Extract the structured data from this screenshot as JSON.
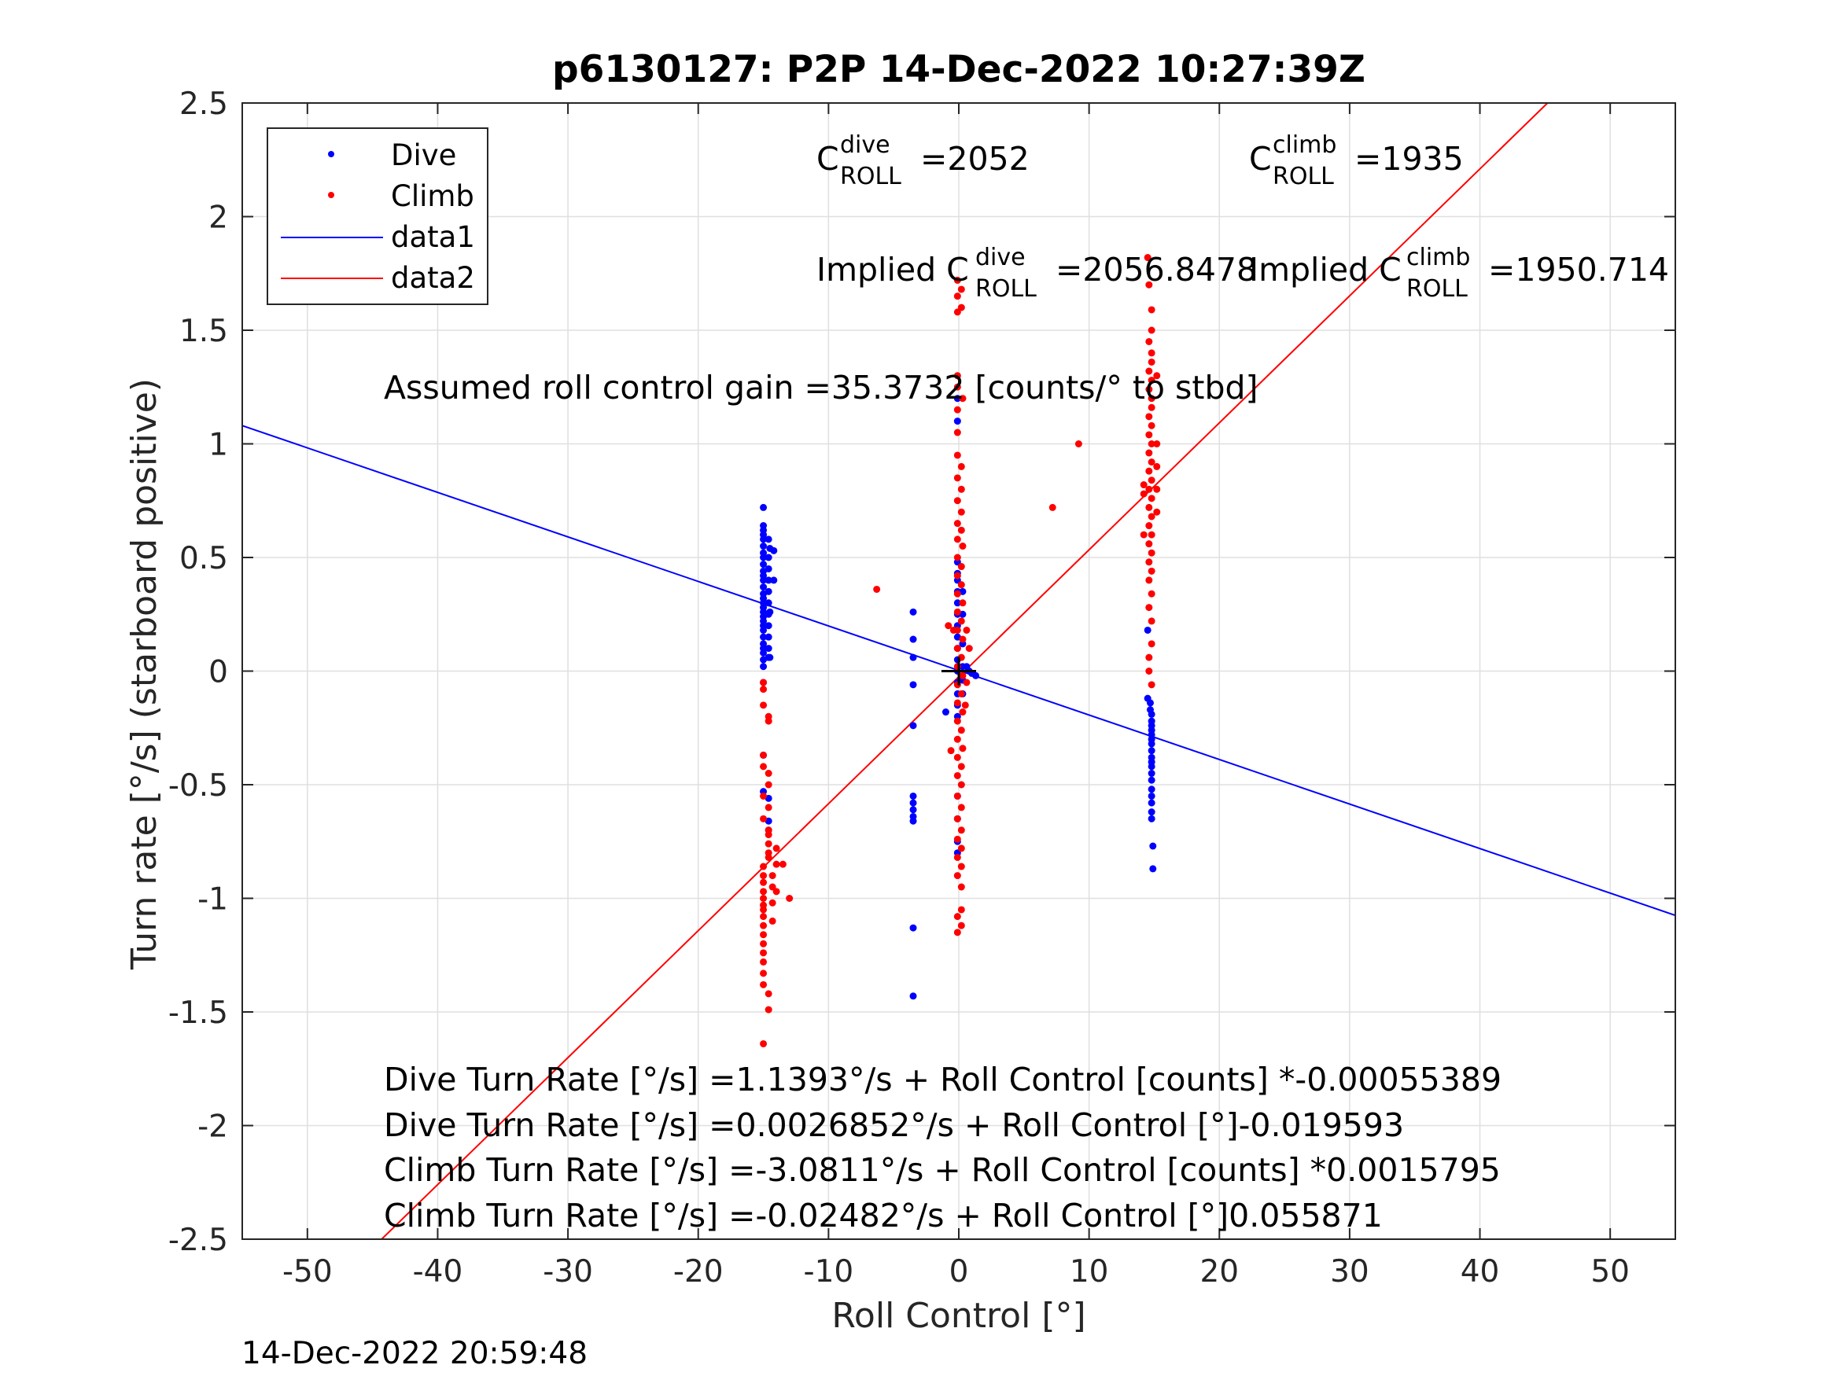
{
  "chart_data": {
    "type": "scatter",
    "title": "p6130127: P2P 14-Dec-2022 10:27:39Z",
    "xlabel": "Roll Control [°]",
    "ylabel": "Turn rate [°/s] (starboard positive)",
    "xlim": [
      -55,
      55
    ],
    "ylim": [
      -2.5,
      2.5
    ],
    "xticks": [
      -50,
      -40,
      -30,
      -20,
      -10,
      0,
      10,
      20,
      30,
      40,
      50
    ],
    "xtick_labels": [
      "-50",
      "-40",
      "-30",
      "-20",
      "-10",
      "0",
      "10",
      "20",
      "30",
      "40",
      "50"
    ],
    "yticks": [
      -2.5,
      -2,
      -1.5,
      -1,
      -0.5,
      0,
      0.5,
      1,
      1.5,
      2,
      2.5
    ],
    "ytick_labels": [
      "-2.5",
      "-2",
      "-1.5",
      "-1",
      "-0.5",
      "0",
      "0.5",
      "1",
      "1.5",
      "2",
      "2.5"
    ],
    "grid": true,
    "legend_position": "top-left",
    "series": [
      {
        "name": "Dive",
        "kind": "points",
        "color": "#0000ff",
        "points": [
          [
            -15.0,
            0.72
          ],
          [
            -15.0,
            0.64
          ],
          [
            -15.0,
            0.62
          ],
          [
            -15.0,
            0.6
          ],
          [
            -15.0,
            0.58
          ],
          [
            -15.0,
            0.55
          ],
          [
            -15.0,
            0.52
          ],
          [
            -15.0,
            0.5
          ],
          [
            -15.0,
            0.47
          ],
          [
            -15.0,
            0.44
          ],
          [
            -15.0,
            0.42
          ],
          [
            -15.0,
            0.4
          ],
          [
            -15.0,
            0.37
          ],
          [
            -15.0,
            0.34
          ],
          [
            -15.0,
            0.32
          ],
          [
            -15.0,
            0.3
          ],
          [
            -15.0,
            0.28
          ],
          [
            -15.0,
            0.26
          ],
          [
            -15.0,
            0.24
          ],
          [
            -15.0,
            0.22
          ],
          [
            -15.0,
            0.2
          ],
          [
            -15.0,
            0.18
          ],
          [
            -15.0,
            0.15
          ],
          [
            -15.0,
            0.12
          ],
          [
            -15.0,
            0.1
          ],
          [
            -15.0,
            0.08
          ],
          [
            -15.0,
            0.05
          ],
          [
            -15.0,
            0.02
          ],
          [
            -15.0,
            -0.05
          ],
          [
            -15.0,
            -0.37
          ],
          [
            -15.0,
            -0.53
          ],
          [
            -14.6,
            0.58
          ],
          [
            -14.6,
            0.5
          ],
          [
            -14.6,
            0.45
          ],
          [
            -14.6,
            0.4
          ],
          [
            -14.6,
            0.35
          ],
          [
            -14.6,
            0.3
          ],
          [
            -14.6,
            0.25
          ],
          [
            -14.6,
            0.2
          ],
          [
            -14.6,
            0.15
          ],
          [
            -14.6,
            0.1
          ],
          [
            -14.6,
            0.06
          ],
          [
            -14.5,
            0.54
          ],
          [
            -14.5,
            0.26
          ],
          [
            -14.5,
            0.06
          ],
          [
            -14.2,
            0.53
          ],
          [
            -14.2,
            0.4
          ],
          [
            -14.6,
            -0.56
          ],
          [
            -14.6,
            -0.66
          ],
          [
            -14.6,
            -0.7
          ],
          [
            -3.5,
            0.26
          ],
          [
            -3.5,
            0.14
          ],
          [
            -3.5,
            0.06
          ],
          [
            -3.5,
            -0.06
          ],
          [
            -3.5,
            -0.24
          ],
          [
            -3.5,
            -0.55
          ],
          [
            -3.5,
            -0.58
          ],
          [
            -3.5,
            -0.61
          ],
          [
            -3.5,
            -0.64
          ],
          [
            -3.5,
            -0.66
          ],
          [
            -3.5,
            -1.13
          ],
          [
            -3.5,
            -1.43
          ],
          [
            -1.0,
            -0.18
          ],
          [
            -0.1,
            1.2
          ],
          [
            -0.1,
            1.1
          ],
          [
            -0.1,
            0.48
          ],
          [
            -0.1,
            0.43
          ],
          [
            -0.1,
            0.4
          ],
          [
            -0.1,
            0.35
          ],
          [
            -0.1,
            0.3
          ],
          [
            -0.1,
            0.25
          ],
          [
            -0.1,
            0.2
          ],
          [
            -0.1,
            0.15
          ],
          [
            -0.1,
            0.1
          ],
          [
            -0.1,
            0.05
          ],
          [
            -0.1,
            0.0
          ],
          [
            -0.1,
            -0.05
          ],
          [
            -0.1,
            -0.1
          ],
          [
            -0.1,
            -0.15
          ],
          [
            -0.1,
            -0.2
          ],
          [
            -0.1,
            -0.55
          ],
          [
            -0.1,
            -0.65
          ],
          [
            -0.1,
            -0.75
          ],
          [
            -0.1,
            -0.8
          ],
          [
            0.3,
            0.35
          ],
          [
            0.3,
            0.25
          ],
          [
            0.3,
            0.12
          ],
          [
            0.3,
            0.02
          ],
          [
            0.3,
            -0.04
          ],
          [
            0.3,
            -0.1
          ],
          [
            0.6,
            0.02
          ],
          [
            0.8,
            0.0
          ],
          [
            1.0,
            -0.01
          ],
          [
            1.3,
            -0.02
          ],
          [
            14.5,
            0.18
          ],
          [
            14.5,
            -0.12
          ],
          [
            14.7,
            -0.14
          ],
          [
            14.7,
            -0.17
          ],
          [
            14.8,
            -0.19
          ],
          [
            14.8,
            -0.22
          ],
          [
            14.8,
            -0.24
          ],
          [
            14.8,
            -0.26
          ],
          [
            14.8,
            -0.28
          ],
          [
            14.8,
            -0.3
          ],
          [
            14.8,
            -0.32
          ],
          [
            14.8,
            -0.35
          ],
          [
            14.8,
            -0.38
          ],
          [
            14.8,
            -0.4
          ],
          [
            14.8,
            -0.42
          ],
          [
            14.8,
            -0.45
          ],
          [
            14.8,
            -0.48
          ],
          [
            14.8,
            -0.52
          ],
          [
            14.8,
            -0.55
          ],
          [
            14.8,
            -0.58
          ],
          [
            14.8,
            -0.62
          ],
          [
            14.8,
            -0.65
          ],
          [
            14.9,
            -0.77
          ],
          [
            14.9,
            -0.87
          ]
        ]
      },
      {
        "name": "Climb",
        "kind": "points",
        "color": "#ff0000",
        "points": [
          [
            -15.0,
            -0.05
          ],
          [
            -15.0,
            -0.08
          ],
          [
            -15.0,
            -0.15
          ],
          [
            -14.6,
            -0.2
          ],
          [
            -14.6,
            -0.22
          ],
          [
            -15.0,
            -0.37
          ],
          [
            -15.0,
            -0.42
          ],
          [
            -14.6,
            -0.45
          ],
          [
            -14.6,
            -0.5
          ],
          [
            -15.0,
            -0.55
          ],
          [
            -14.6,
            -0.6
          ],
          [
            -15.0,
            -0.65
          ],
          [
            -14.6,
            -0.7
          ],
          [
            -14.6,
            -0.72
          ],
          [
            -14.6,
            -0.76
          ],
          [
            -14.6,
            -0.8
          ],
          [
            -14.6,
            -0.82
          ],
          [
            -15.0,
            -0.86
          ],
          [
            -15.0,
            -0.9
          ],
          [
            -15.0,
            -0.93
          ],
          [
            -15.0,
            -0.97
          ],
          [
            -15.0,
            -1.0
          ],
          [
            -15.0,
            -1.03
          ],
          [
            -15.0,
            -1.05
          ],
          [
            -15.0,
            -1.08
          ],
          [
            -15.0,
            -1.12
          ],
          [
            -15.0,
            -1.16
          ],
          [
            -15.0,
            -1.2
          ],
          [
            -15.0,
            -1.24
          ],
          [
            -15.0,
            -1.28
          ],
          [
            -15.0,
            -1.33
          ],
          [
            -15.0,
            -1.38
          ],
          [
            -14.6,
            -1.42
          ],
          [
            -14.6,
            -1.49
          ],
          [
            -15.0,
            -1.64
          ],
          [
            -14.3,
            -0.9
          ],
          [
            -14.3,
            -0.95
          ],
          [
            -14.3,
            -1.02
          ],
          [
            -14.3,
            -1.1
          ],
          [
            -14.0,
            -0.78
          ],
          [
            -14.0,
            -0.85
          ],
          [
            -14.0,
            -0.97
          ],
          [
            -13.5,
            -0.85
          ],
          [
            -13.0,
            -1.0
          ],
          [
            -6.3,
            0.36
          ],
          [
            -0.8,
            0.2
          ],
          [
            -0.6,
            -0.35
          ],
          [
            -0.4,
            0.18
          ],
          [
            -0.1,
            1.72
          ],
          [
            -0.1,
            1.65
          ],
          [
            -0.1,
            1.58
          ],
          [
            0.2,
            1.68
          ],
          [
            0.2,
            1.6
          ],
          [
            -0.1,
            1.3
          ],
          [
            -0.1,
            1.25
          ],
          [
            0.3,
            1.2
          ],
          [
            -0.1,
            1.15
          ],
          [
            -0.1,
            1.05
          ],
          [
            -0.1,
            0.95
          ],
          [
            0.2,
            0.9
          ],
          [
            -0.1,
            0.85
          ],
          [
            0.2,
            0.8
          ],
          [
            -0.1,
            0.75
          ],
          [
            0.2,
            0.7
          ],
          [
            -0.1,
            0.65
          ],
          [
            0.2,
            0.62
          ],
          [
            -0.1,
            0.58
          ],
          [
            0.3,
            0.55
          ],
          [
            -0.1,
            0.5
          ],
          [
            0.2,
            0.46
          ],
          [
            -0.1,
            0.42
          ],
          [
            0.2,
            0.38
          ],
          [
            -0.1,
            0.34
          ],
          [
            0.3,
            0.3
          ],
          [
            -0.1,
            0.26
          ],
          [
            0.2,
            0.22
          ],
          [
            -0.1,
            0.18
          ],
          [
            0.3,
            0.14
          ],
          [
            -0.1,
            0.1
          ],
          [
            0.2,
            0.06
          ],
          [
            -0.1,
            0.02
          ],
          [
            0.3,
            -0.02
          ],
          [
            -0.1,
            -0.06
          ],
          [
            0.2,
            -0.1
          ],
          [
            -0.1,
            -0.14
          ],
          [
            0.3,
            -0.18
          ],
          [
            -0.1,
            -0.22
          ],
          [
            0.2,
            -0.26
          ],
          [
            -0.1,
            -0.3
          ],
          [
            0.3,
            -0.34
          ],
          [
            -0.1,
            -0.38
          ],
          [
            0.2,
            -0.42
          ],
          [
            -0.1,
            -0.46
          ],
          [
            0.2,
            -0.5
          ],
          [
            -0.1,
            -0.55
          ],
          [
            0.2,
            -0.6
          ],
          [
            -0.1,
            -0.65
          ],
          [
            0.2,
            -0.7
          ],
          [
            -0.1,
            -0.74
          ],
          [
            0.2,
            -0.78
          ],
          [
            -0.1,
            -0.82
          ],
          [
            0.2,
            -0.86
          ],
          [
            -0.1,
            -0.9
          ],
          [
            0.2,
            -0.95
          ],
          [
            -0.1,
            -1.08
          ],
          [
            0.2,
            -1.12
          ],
          [
            -0.1,
            -1.15
          ],
          [
            0.2,
            -1.05
          ],
          [
            0.5,
            -0.15
          ],
          [
            0.6,
            0.18
          ],
          [
            0.6,
            -0.05
          ],
          [
            0.8,
            0.1
          ],
          [
            7.2,
            0.72
          ],
          [
            9.2,
            1.0
          ],
          [
            14.5,
            1.82
          ],
          [
            14.6,
            1.7
          ],
          [
            14.8,
            1.59
          ],
          [
            14.8,
            1.5
          ],
          [
            14.6,
            1.45
          ],
          [
            14.8,
            1.4
          ],
          [
            14.8,
            1.36
          ],
          [
            14.6,
            1.32
          ],
          [
            14.8,
            1.28
          ],
          [
            14.6,
            1.24
          ],
          [
            14.8,
            1.2
          ],
          [
            14.8,
            1.16
          ],
          [
            14.6,
            1.12
          ],
          [
            14.8,
            1.08
          ],
          [
            14.6,
            1.04
          ],
          [
            14.8,
            1.0
          ],
          [
            14.6,
            0.96
          ],
          [
            14.8,
            0.92
          ],
          [
            14.6,
            0.88
          ],
          [
            14.8,
            0.84
          ],
          [
            14.6,
            0.8
          ],
          [
            14.8,
            0.76
          ],
          [
            14.6,
            0.72
          ],
          [
            14.8,
            0.68
          ],
          [
            14.6,
            0.64
          ],
          [
            14.8,
            0.6
          ],
          [
            14.6,
            0.56
          ],
          [
            14.8,
            0.52
          ],
          [
            14.6,
            0.48
          ],
          [
            14.8,
            0.44
          ],
          [
            14.6,
            0.4
          ],
          [
            14.8,
            0.34
          ],
          [
            14.6,
            0.28
          ],
          [
            14.8,
            0.22
          ],
          [
            14.8,
            0.12
          ],
          [
            14.6,
            0.06
          ],
          [
            14.6,
            0.0
          ],
          [
            14.8,
            -0.06
          ],
          [
            14.2,
            0.82
          ],
          [
            14.2,
            0.78
          ],
          [
            14.2,
            0.6
          ],
          [
            15.2,
            1.3
          ],
          [
            15.2,
            1.0
          ],
          [
            15.2,
            0.9
          ],
          [
            15.2,
            0.8
          ],
          [
            15.2,
            0.7
          ]
        ]
      },
      {
        "name": "data1",
        "kind": "line",
        "color": "#0000ff",
        "slope": -0.019593,
        "intercept": 0.0026852
      },
      {
        "name": "data2",
        "kind": "line",
        "color": "#ff0000",
        "slope": 0.055871,
        "intercept": -0.02482
      }
    ],
    "origin_marker": {
      "kind": "plus",
      "color": "#000000",
      "x": 0,
      "y": 0
    },
    "annotations": {
      "c_dive": {
        "base": "C",
        "sup": "dive",
        "sub": "ROLL",
        "value": "=2052"
      },
      "c_climb": {
        "base": "C",
        "sup": "climb",
        "sub": "ROLL",
        "value": "=1935"
      },
      "implied_dive": {
        "prefix": "Implied C",
        "sup": "dive",
        "sub": "ROLL",
        "value": "=2056.8478"
      },
      "implied_climb": {
        "prefix": "Implied C",
        "sup": "climb",
        "sub": "ROLL",
        "value": "=1950.714"
      },
      "gain": "Assumed roll control gain =35.3732 [counts/° to stbd]",
      "fit_lines": [
        "Dive Turn Rate [°/s] =1.1393°/s + Roll Control [counts] *-0.00055389",
        "Dive Turn Rate [°/s] =0.0026852°/s + Roll Control [°]-0.019593",
        "Climb Turn Rate [°/s] =-3.0811°/s + Roll Control [counts] *0.0015795",
        "Climb Turn Rate [°/s] =-0.02482°/s + Roll Control [°]0.055871"
      ]
    },
    "timestamp": "14-Dec-2022 20:59:48"
  }
}
